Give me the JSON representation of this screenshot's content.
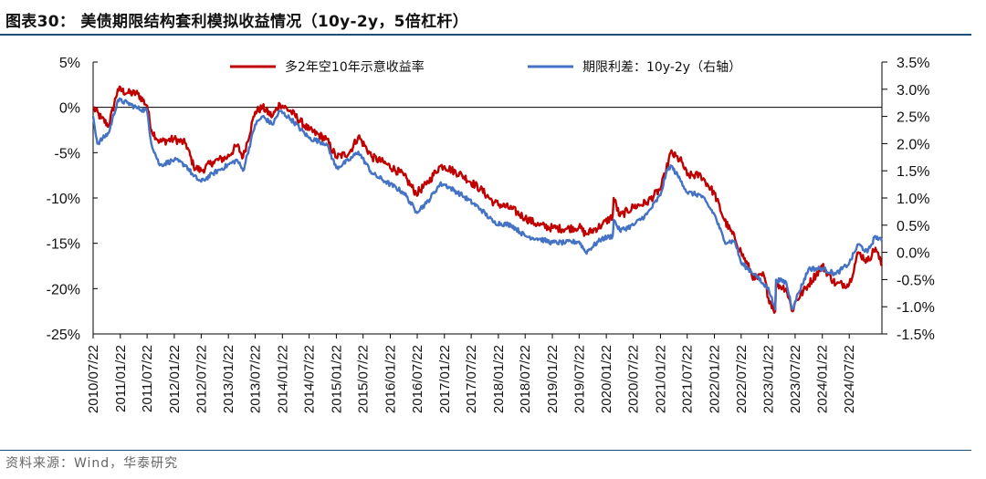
{
  "header": {
    "title": "图表30：  美债期限结构套利模拟收益情况（10y-2y，5倍杠杆）"
  },
  "footer": {
    "source": "资料来源：Wind，华泰研究"
  },
  "colors": {
    "series_red": "#c00000",
    "series_blue": "#4472c4",
    "rule": "#1f4e79",
    "axis": "#000000"
  },
  "chart_data": {
    "type": "line",
    "x_type": "date",
    "xlim": [
      "2010-07-22",
      "2025-02-28"
    ],
    "x_tick_labels": [
      "2010/07/22",
      "2011/01/22",
      "2011/07/22",
      "2012/01/22",
      "2012/07/22",
      "2013/01/22",
      "2013/07/22",
      "2014/01/22",
      "2014/07/22",
      "2015/01/22",
      "2015/07/22",
      "2016/01/22",
      "2016/07/22",
      "2017/01/22",
      "2017/07/22",
      "2018/01/22",
      "2018/07/22",
      "2019/01/22",
      "2019/07/22",
      "2020/01/22",
      "2020/07/22",
      "2021/01/22",
      "2021/07/22",
      "2022/01/22",
      "2022/07/22",
      "2023/01/22",
      "2023/07/22",
      "2024/01/22",
      "2024/07/22"
    ],
    "y_left": {
      "unit": "%",
      "lim": [
        -25,
        5
      ],
      "ticks": [
        5,
        0,
        -5,
        -10,
        -15,
        -20,
        -25
      ],
      "tick_labels": [
        "5%",
        "0%",
        "-5%",
        "-10%",
        "-15%",
        "-20%",
        "-25%"
      ]
    },
    "y_right": {
      "unit": "%",
      "lim": [
        -1.5,
        3.5
      ],
      "ticks": [
        3.5,
        3.0,
        2.5,
        2.0,
        1.5,
        1.0,
        0.5,
        0.0,
        -0.5,
        -1.0,
        -1.5
      ],
      "tick_labels": [
        "3.5%",
        "3.0%",
        "2.5%",
        "2.0%",
        "1.5%",
        "1.0%",
        "0.5%",
        "0.0%",
        "-0.5%",
        "-1.0%",
        "-1.5%"
      ]
    },
    "legend_position": "top-center",
    "grid": false,
    "series": [
      {
        "name": "多2年空10年示意收益率",
        "axis": "left",
        "color": "#c00000",
        "points": [
          [
            "2010-07-22",
            0.0
          ],
          [
            "2010-09-15",
            -1.2
          ],
          [
            "2010-11-05",
            -2.0
          ],
          [
            "2011-01-05",
            2.0
          ],
          [
            "2011-03-10",
            1.6
          ],
          [
            "2011-05-20",
            1.5
          ],
          [
            "2011-07-22",
            0.2
          ],
          [
            "2011-08-20",
            -2.5
          ],
          [
            "2011-10-15",
            -3.8
          ],
          [
            "2012-01-22",
            -3.5
          ],
          [
            "2012-04-10",
            -4.0
          ],
          [
            "2012-06-01",
            -6.5
          ],
          [
            "2012-07-22",
            -7.0
          ],
          [
            "2012-10-10",
            -6.0
          ],
          [
            "2013-01-15",
            -5.5
          ],
          [
            "2013-03-22",
            -4.2
          ],
          [
            "2013-05-01",
            -5.5
          ],
          [
            "2013-07-22",
            -0.5
          ],
          [
            "2013-09-10",
            0.0
          ],
          [
            "2013-11-15",
            -1.0
          ],
          [
            "2014-01-05",
            0.4
          ],
          [
            "2014-03-22",
            -0.5
          ],
          [
            "2014-07-22",
            -2.5
          ],
          [
            "2014-11-15",
            -3.5
          ],
          [
            "2015-01-22",
            -5.5
          ],
          [
            "2015-04-20",
            -5.0
          ],
          [
            "2015-06-20",
            -3.2
          ],
          [
            "2015-09-22",
            -5.5
          ],
          [
            "2015-12-22",
            -6.2
          ],
          [
            "2016-04-22",
            -7.5
          ],
          [
            "2016-07-15",
            -9.5
          ],
          [
            "2016-09-22",
            -8.5
          ],
          [
            "2016-12-22",
            -6.5
          ],
          [
            "2017-01-22",
            -6.5
          ],
          [
            "2017-05-22",
            -7.5
          ],
          [
            "2017-09-22",
            -9.0
          ],
          [
            "2017-12-22",
            -10.5
          ],
          [
            "2018-04-22",
            -11.2
          ],
          [
            "2018-07-22",
            -12.2
          ],
          [
            "2018-10-22",
            -13.0
          ],
          [
            "2019-01-22",
            -13.3
          ],
          [
            "2019-04-22",
            -13.4
          ],
          [
            "2019-07-22",
            -13.2
          ],
          [
            "2019-09-05",
            -14.0
          ],
          [
            "2019-12-22",
            -13.0
          ],
          [
            "2020-03-05",
            -12.0
          ],
          [
            "2020-03-12",
            -10.0
          ],
          [
            "2020-04-22",
            -12.0
          ],
          [
            "2020-07-22",
            -11.0
          ],
          [
            "2020-10-22",
            -10.5
          ],
          [
            "2021-01-22",
            -9.0
          ],
          [
            "2021-03-01",
            -7.0
          ],
          [
            "2021-04-01",
            -5.0
          ],
          [
            "2021-06-15",
            -6.0
          ],
          [
            "2021-07-22",
            -7.5
          ],
          [
            "2021-10-22",
            -7.5
          ],
          [
            "2022-01-22",
            -9.5
          ],
          [
            "2022-04-01",
            -12.5
          ],
          [
            "2022-06-10",
            -14.5
          ],
          [
            "2022-07-22",
            -16.0
          ],
          [
            "2022-10-22",
            -19.0
          ],
          [
            "2022-12-22",
            -18.5
          ],
          [
            "2023-01-22",
            -21.0
          ],
          [
            "2023-03-09",
            -22.5
          ],
          [
            "2023-03-15",
            -19.5
          ],
          [
            "2023-05-22",
            -20.0
          ],
          [
            "2023-07-05",
            -22.5
          ],
          [
            "2023-07-22",
            -21.5
          ],
          [
            "2023-10-22",
            -19.5
          ],
          [
            "2024-01-22",
            -17.5
          ],
          [
            "2024-04-22",
            -19.5
          ],
          [
            "2024-07-22",
            -19.5
          ],
          [
            "2024-09-22",
            -16.0
          ],
          [
            "2024-11-22",
            -17.0
          ],
          [
            "2025-01-15",
            -15.5
          ],
          [
            "2025-02-28",
            -17.5
          ]
        ]
      },
      {
        "name": "期限利差：10y-2y（右轴）",
        "axis": "right",
        "color": "#4472c4",
        "points": [
          [
            "2010-07-22",
            2.5
          ],
          [
            "2010-08-20",
            2.0
          ],
          [
            "2010-11-05",
            2.2
          ],
          [
            "2011-01-05",
            2.8
          ],
          [
            "2011-03-10",
            2.75
          ],
          [
            "2011-05-20",
            2.65
          ],
          [
            "2011-07-22",
            2.6
          ],
          [
            "2011-08-20",
            2.0
          ],
          [
            "2011-10-15",
            1.6
          ],
          [
            "2012-01-22",
            1.7
          ],
          [
            "2012-04-10",
            1.6
          ],
          [
            "2012-06-01",
            1.4
          ],
          [
            "2012-07-22",
            1.3
          ],
          [
            "2012-10-10",
            1.45
          ],
          [
            "2013-01-15",
            1.6
          ],
          [
            "2013-03-22",
            1.7
          ],
          [
            "2013-05-01",
            1.5
          ],
          [
            "2013-07-22",
            2.35
          ],
          [
            "2013-09-10",
            2.5
          ],
          [
            "2013-11-15",
            2.35
          ],
          [
            "2014-01-05",
            2.6
          ],
          [
            "2014-03-22",
            2.45
          ],
          [
            "2014-07-22",
            2.1
          ],
          [
            "2014-11-15",
            2.0
          ],
          [
            "2015-01-22",
            1.55
          ],
          [
            "2015-04-20",
            1.7
          ],
          [
            "2015-06-20",
            1.85
          ],
          [
            "2015-09-22",
            1.45
          ],
          [
            "2015-12-22",
            1.3
          ],
          [
            "2016-04-22",
            1.1
          ],
          [
            "2016-07-15",
            0.75
          ],
          [
            "2016-09-22",
            0.9
          ],
          [
            "2016-12-22",
            1.25
          ],
          [
            "2017-01-22",
            1.25
          ],
          [
            "2017-05-22",
            1.05
          ],
          [
            "2017-09-22",
            0.8
          ],
          [
            "2017-12-22",
            0.55
          ],
          [
            "2018-04-22",
            0.5
          ],
          [
            "2018-07-22",
            0.3
          ],
          [
            "2018-10-22",
            0.25
          ],
          [
            "2019-01-22",
            0.18
          ],
          [
            "2019-04-22",
            0.18
          ],
          [
            "2019-07-22",
            0.2
          ],
          [
            "2019-09-05",
            0.0
          ],
          [
            "2019-12-22",
            0.25
          ],
          [
            "2020-03-05",
            0.3
          ],
          [
            "2020-03-12",
            0.6
          ],
          [
            "2020-04-22",
            0.4
          ],
          [
            "2020-07-22",
            0.5
          ],
          [
            "2020-10-22",
            0.7
          ],
          [
            "2021-01-22",
            1.05
          ],
          [
            "2021-03-01",
            1.45
          ],
          [
            "2021-04-01",
            1.6
          ],
          [
            "2021-06-15",
            1.3
          ],
          [
            "2021-07-22",
            1.1
          ],
          [
            "2021-10-22",
            1.05
          ],
          [
            "2022-01-22",
            0.7
          ],
          [
            "2022-04-01",
            0.2
          ],
          [
            "2022-06-10",
            0.2
          ],
          [
            "2022-07-22",
            -0.2
          ],
          [
            "2022-10-22",
            -0.4
          ],
          [
            "2022-12-22",
            -0.6
          ],
          [
            "2023-01-22",
            -0.65
          ],
          [
            "2023-03-09",
            -1.05
          ],
          [
            "2023-03-15",
            -0.5
          ],
          [
            "2023-05-22",
            -0.55
          ],
          [
            "2023-07-05",
            -1.05
          ],
          [
            "2023-07-22",
            -0.9
          ],
          [
            "2023-10-22",
            -0.3
          ],
          [
            "2024-01-22",
            -0.3
          ],
          [
            "2024-04-22",
            -0.4
          ],
          [
            "2024-07-22",
            -0.2
          ],
          [
            "2024-09-22",
            0.15
          ],
          [
            "2024-11-22",
            0.0
          ],
          [
            "2025-01-15",
            0.3
          ],
          [
            "2025-02-28",
            0.2
          ]
        ]
      }
    ]
  }
}
